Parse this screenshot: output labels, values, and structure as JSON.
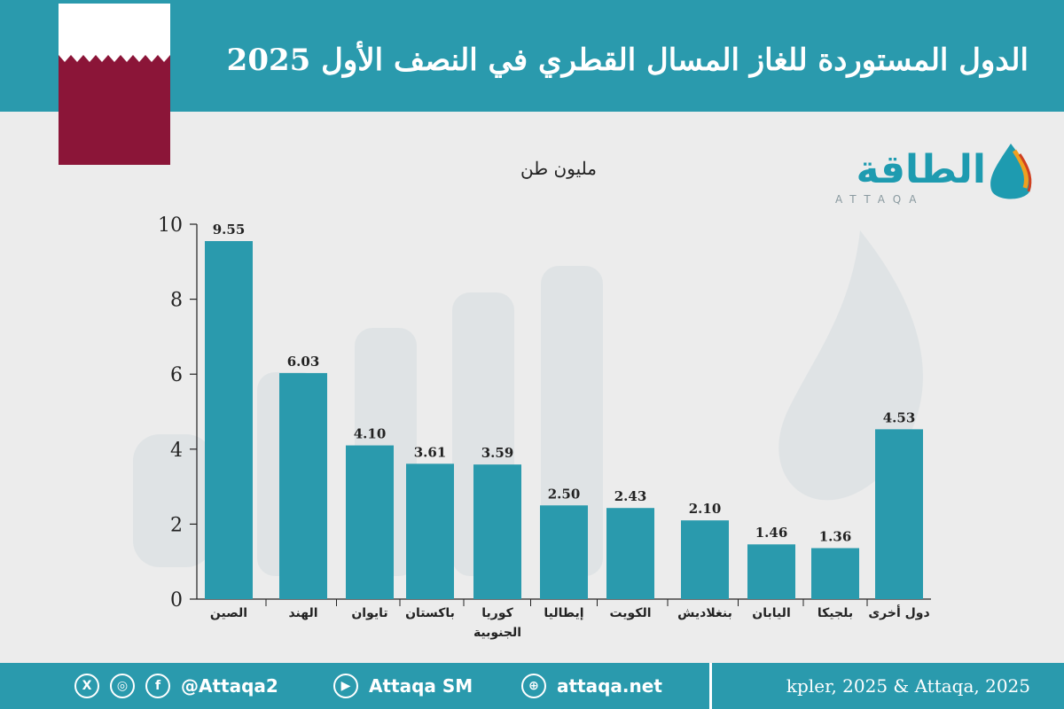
{
  "header": {
    "title": "الدول المستوردة للغاز المسال القطري في النصف الأول 2025"
  },
  "logo": {
    "arabic": "الطاقة",
    "latin": "ATTAQA"
  },
  "colors": {
    "accent": "#2a9aad",
    "bar": "#2a9aad",
    "flag_maroon": "#8b1538",
    "flag_white": "#ffffff",
    "background": "#ececec"
  },
  "chart_data": {
    "type": "bar",
    "unit_label": "مليون طن",
    "categories": [
      "الصين",
      "الهند",
      "تايوان",
      "باكستان",
      "كوريا الجنوبية",
      "إيطاليا",
      "الكويت",
      "بنغلاديش",
      "اليابان",
      "بلجيكا",
      "دول أخرى"
    ],
    "category_lines": [
      [
        "الصين"
      ],
      [
        "الهند"
      ],
      [
        "تايوان"
      ],
      [
        "باكستان"
      ],
      [
        "كوريا",
        "الجنوبية"
      ],
      [
        "إيطاليا"
      ],
      [
        "الكويت"
      ],
      [
        "بنغلاديش"
      ],
      [
        "اليابان"
      ],
      [
        "بلجيكا"
      ],
      [
        "دول أخرى"
      ]
    ],
    "values": [
      9.55,
      6.03,
      4.1,
      3.61,
      3.59,
      2.5,
      2.43,
      2.1,
      1.46,
      1.36,
      4.53
    ],
    "value_labels": [
      "9.55",
      "6.03",
      "4.10",
      "3.61",
      "3.59",
      "2.50",
      "2.43",
      "2.10",
      "1.46",
      "1.36",
      "4.53"
    ],
    "ylim": [
      0,
      10
    ],
    "yticks": [
      0,
      2,
      4,
      6,
      8,
      10
    ],
    "grid": false,
    "legend": "none"
  },
  "footer": {
    "icons": [
      "x-icon",
      "instagram-icon",
      "facebook-icon",
      "youtube-icon",
      "dribbble-icon"
    ],
    "handle": "@Attaqa2",
    "youtube": "Attaqa SM",
    "website": "attaqa.net",
    "source": "kpler, 2025 & Attaqa, 2025"
  }
}
